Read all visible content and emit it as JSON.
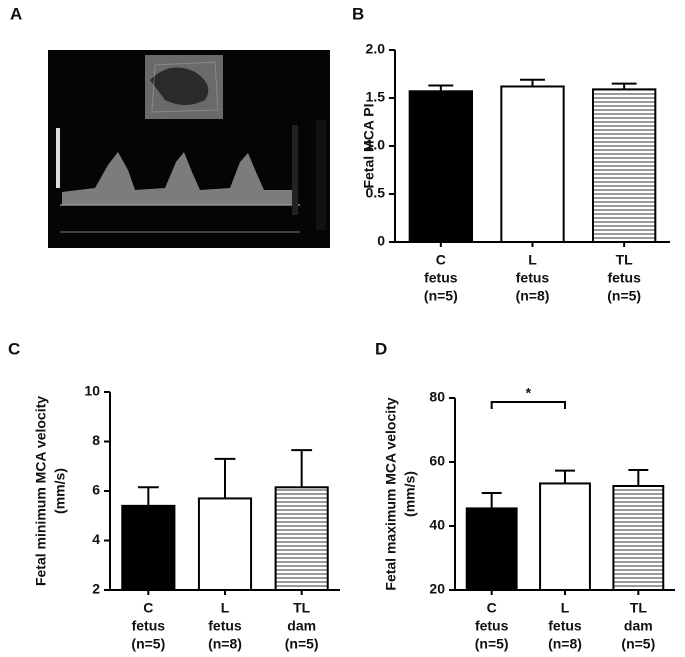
{
  "image_panel": {
    "panel_label": "A"
  },
  "chart_data": [
    {
      "type": "bar",
      "panel_label": "B",
      "ylabel": [
        "Fetal MCA PI"
      ],
      "categories": [
        [
          "C",
          "fetus",
          "(n=5)"
        ],
        [
          "L",
          "fetus",
          "(n=8)"
        ],
        [
          "TL",
          "fetus",
          "(n=5)"
        ]
      ],
      "values": [
        1.57,
        1.62,
        1.59
      ],
      "errors": [
        0.06,
        0.07,
        0.06
      ],
      "colors": [
        "#000000",
        "#ffffff",
        "#ffffff"
      ],
      "hatch": [
        false,
        false,
        true
      ],
      "ylim": [
        0,
        2
      ],
      "yticks": [
        0,
        0.5,
        {
          "value": 1,
          "label": "1.0"
        },
        1.5,
        {
          "value": 2,
          "label": "2.0"
        }
      ]
    },
    {
      "type": "bar",
      "panel_label": "C",
      "ylabel": [
        "Fetal minimum MCA velocity",
        "(mm/s)"
      ],
      "categories": [
        [
          "C",
          "fetus",
          "(n=5)"
        ],
        [
          "L",
          "fetus",
          "(n=8)"
        ],
        [
          "TL",
          "dam",
          "(n=5)"
        ]
      ],
      "values": [
        5.4,
        5.7,
        6.15
      ],
      "errors": [
        0.75,
        1.6,
        1.5
      ],
      "colors": [
        "#000000",
        "#ffffff",
        "#ffffff"
      ],
      "hatch": [
        false,
        false,
        true
      ],
      "ylim": [
        2,
        10
      ],
      "yticks": [
        2,
        4,
        6,
        8,
        10
      ]
    },
    {
      "type": "bar",
      "panel_label": "D",
      "ylabel": [
        "Fetal maximum MCA velocity",
        "(mm/s)"
      ],
      "categories": [
        [
          "C",
          "fetus",
          "(n=5)"
        ],
        [
          "L",
          "fetus",
          "(n=8)"
        ],
        [
          "TL",
          "dam",
          "(n=5)"
        ]
      ],
      "values": [
        45.5,
        53.3,
        52.5
      ],
      "errors": [
        4.8,
        4,
        5
      ],
      "colors": [
        "#000000",
        "#ffffff",
        "#ffffff"
      ],
      "hatch": [
        false,
        false,
        true
      ],
      "ylim": [
        20,
        80
      ],
      "yticks": [
        20,
        40,
        60,
        80
      ],
      "significance": {
        "label": "*",
        "categories": [
          0,
          1
        ]
      }
    }
  ]
}
